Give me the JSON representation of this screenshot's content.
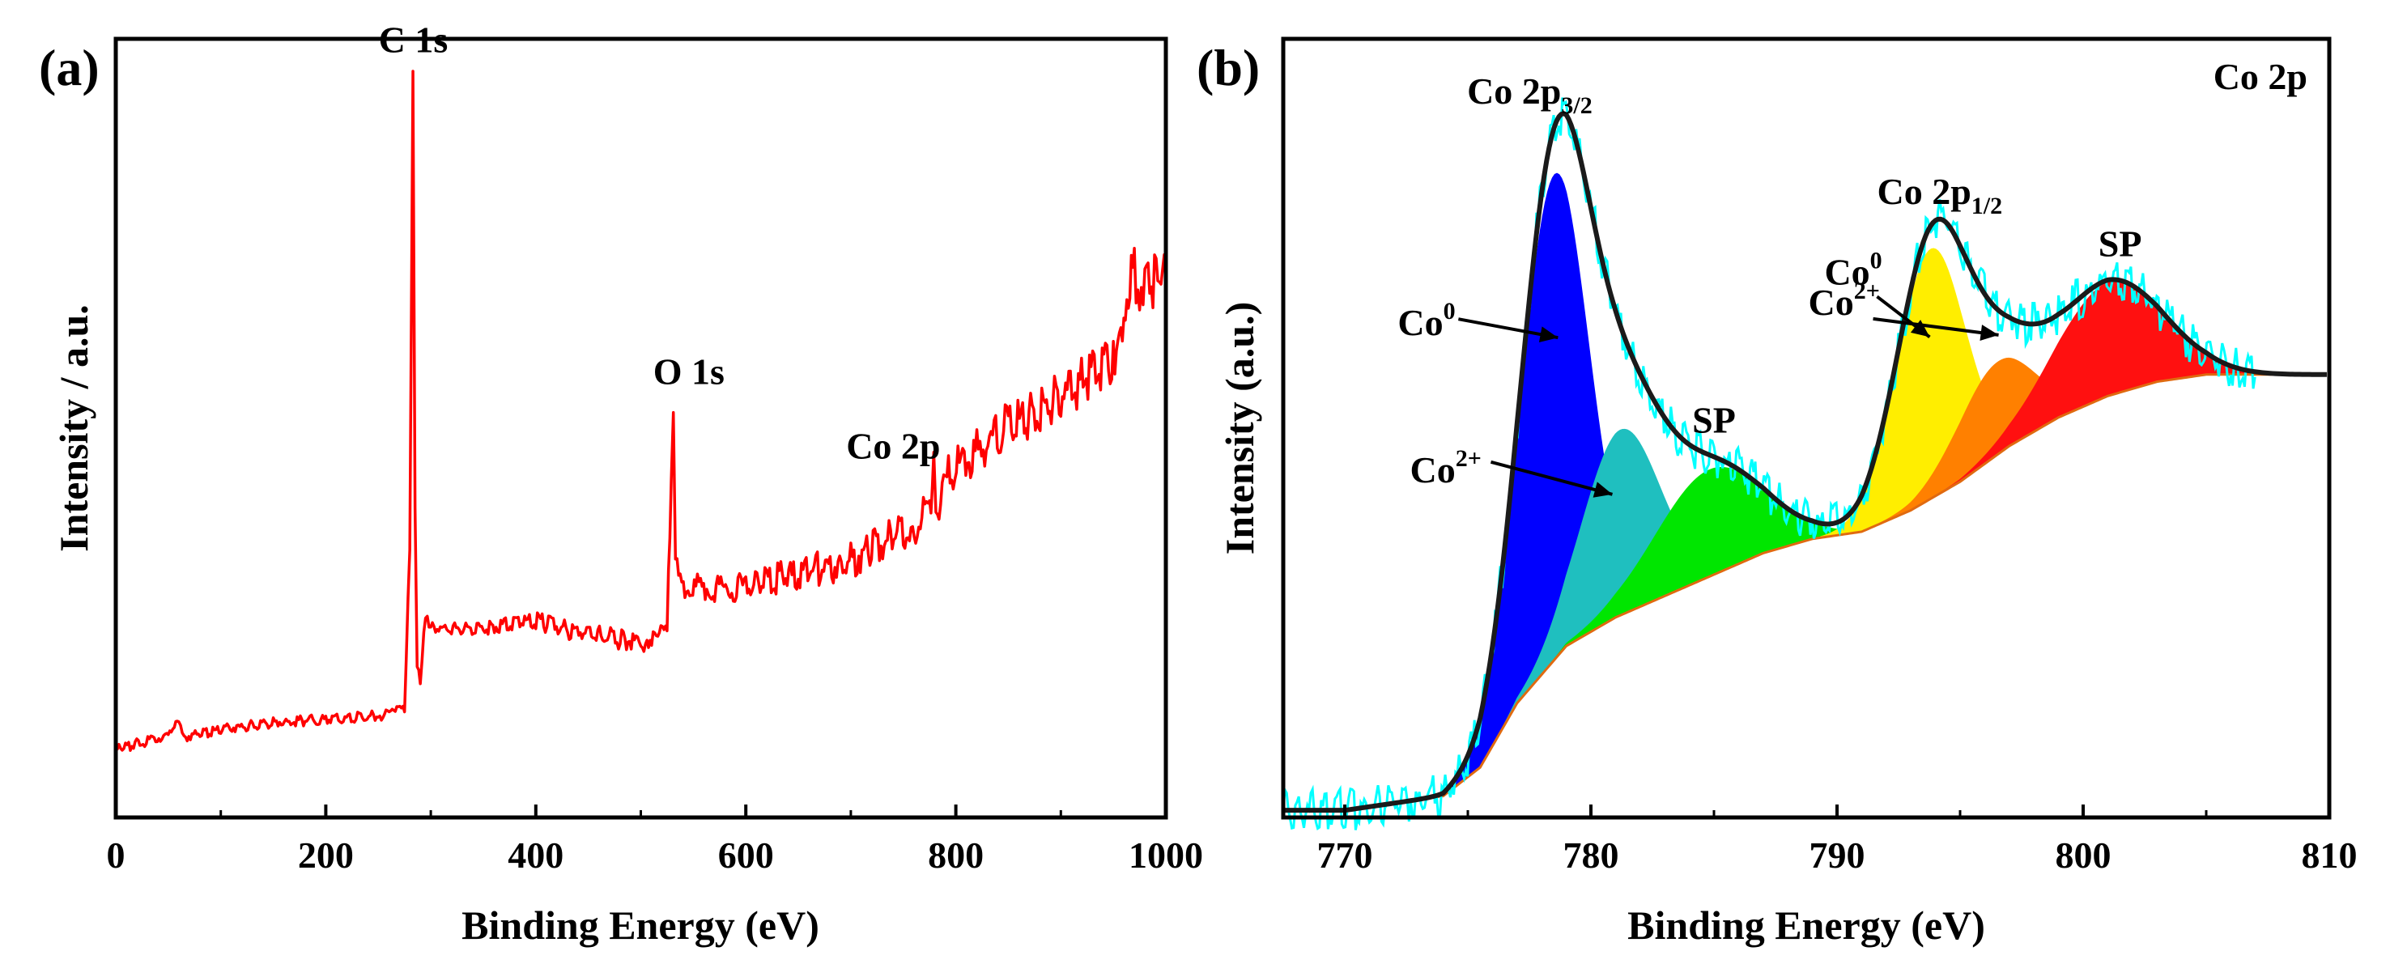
{
  "chart_data": [
    {
      "type": "line",
      "panel_label": "(a)",
      "title": "",
      "xlabel": "Binding Energy (eV)",
      "ylabel": "Intensity / a.u.",
      "xlim": [
        0,
        1000
      ],
      "ylim": [
        -0.1,
        1.05
      ],
      "xticks": [
        0,
        200,
        400,
        600,
        800,
        1000
      ],
      "xtick_labels": [
        "0",
        "200",
        "400",
        "600",
        "800",
        "1000"
      ],
      "grid": false,
      "series": [
        {
          "name": "survey",
          "color": "#ff0000",
          "x": [
            0,
            20,
            50,
            60,
            65,
            100,
            150,
            200,
            250,
            275,
            280,
            283,
            285,
            287,
            290,
            295,
            300,
            350,
            400,
            450,
            500,
            525,
            529,
            531,
            533,
            536,
            545,
            600,
            650,
            700,
            750,
            775,
            779,
            781,
            784,
            790,
            850,
            900,
            950,
            960,
            970,
            975,
            980,
            1000
          ],
          "values": [
            0.0,
            0.01,
            0.02,
            0.04,
            0.02,
            0.03,
            0.04,
            0.045,
            0.05,
            0.06,
            0.3,
            1.0,
            0.35,
            0.12,
            0.1,
            0.2,
            0.18,
            0.18,
            0.19,
            0.17,
            0.16,
            0.17,
            0.4,
            0.5,
            0.3,
            0.25,
            0.24,
            0.24,
            0.26,
            0.28,
            0.32,
            0.35,
            0.42,
            0.38,
            0.36,
            0.4,
            0.48,
            0.52,
            0.58,
            0.65,
            0.72,
            0.65,
            0.68,
            0.7
          ]
        }
      ],
      "annotations": [
        {
          "text": "C 1s",
          "x": 285,
          "y": 1.03
        },
        {
          "text": "O 1s",
          "x": 531,
          "y": 0.54
        },
        {
          "text": "Co 2p",
          "x": 765,
          "y": 0.43
        }
      ]
    },
    {
      "type": "area",
      "panel_label": "(b)",
      "title": "Co 2p",
      "xlabel": "Binding Energy (eV)",
      "ylabel": "Intensity (a.u.)",
      "xlim": [
        767.5,
        810
      ],
      "ylim": [
        -0.01,
        1.08
      ],
      "xticks": [
        770,
        780,
        790,
        800,
        810
      ],
      "xtick_labels": [
        "770",
        "780",
        "790",
        "800",
        "810"
      ],
      "grid": false,
      "background": {
        "x": [
          767.5,
          770,
          772,
          774,
          775.5,
          777,
          779,
          781,
          783,
          785,
          787,
          789,
          791,
          793,
          795,
          797,
          799,
          801,
          803,
          805,
          810
        ],
        "values": [
          0.0,
          0.0,
          0.01,
          0.02,
          0.06,
          0.15,
          0.23,
          0.27,
          0.3,
          0.33,
          0.36,
          0.38,
          0.39,
          0.42,
          0.46,
          0.51,
          0.55,
          0.58,
          0.6,
          0.61,
          0.61
        ]
      },
      "components": [
        {
          "name": "Co⁰ 2p3/2",
          "color": "#0000ff",
          "center": 778.5,
          "height": 0.68,
          "width": 1.4
        },
        {
          "name": "Co²⁺ 2p3/2",
          "color": "#1fbfbf",
          "center": 781.2,
          "height": 0.26,
          "width": 1.6
        },
        {
          "name": "SP 2p3/2",
          "color": "#00e600",
          "center": 784.8,
          "height": 0.15,
          "width": 2.2
        },
        {
          "name": "Co⁰ 2p1/2",
          "color": "#ffee00",
          "center": 793.8,
          "height": 0.35,
          "width": 1.4
        },
        {
          "name": "Co²⁺ 2p1/2",
          "color": "#ff8000",
          "center": 796.5,
          "height": 0.13,
          "width": 1.6
        },
        {
          "name": "SP 2p1/2",
          "color": "#ff1010",
          "center": 801.0,
          "height": 0.16,
          "width": 2.2
        }
      ],
      "series": [
        {
          "name": "fit envelope",
          "color": "#1a1a1a"
        },
        {
          "name": "raw data",
          "color": "#00ffff"
        }
      ],
      "annotations": [
        {
          "text": "Co 2p",
          "sub": "3/2",
          "x": 778.5
        },
        {
          "text": "Co 2p",
          "sub": "1/2",
          "x": 794.5
        },
        {
          "text": "Co",
          "sup": "0",
          "x": 778.4
        },
        {
          "text": "Co",
          "sup": "2+",
          "x": 781.2
        },
        {
          "text": "SP",
          "x": 785.0
        },
        {
          "text": "Co",
          "sup": "0",
          "x": 793.6
        },
        {
          "text": "Co",
          "sup": "2+",
          "x": 796.4
        },
        {
          "text": "SP",
          "x": 801.5
        }
      ]
    }
  ]
}
